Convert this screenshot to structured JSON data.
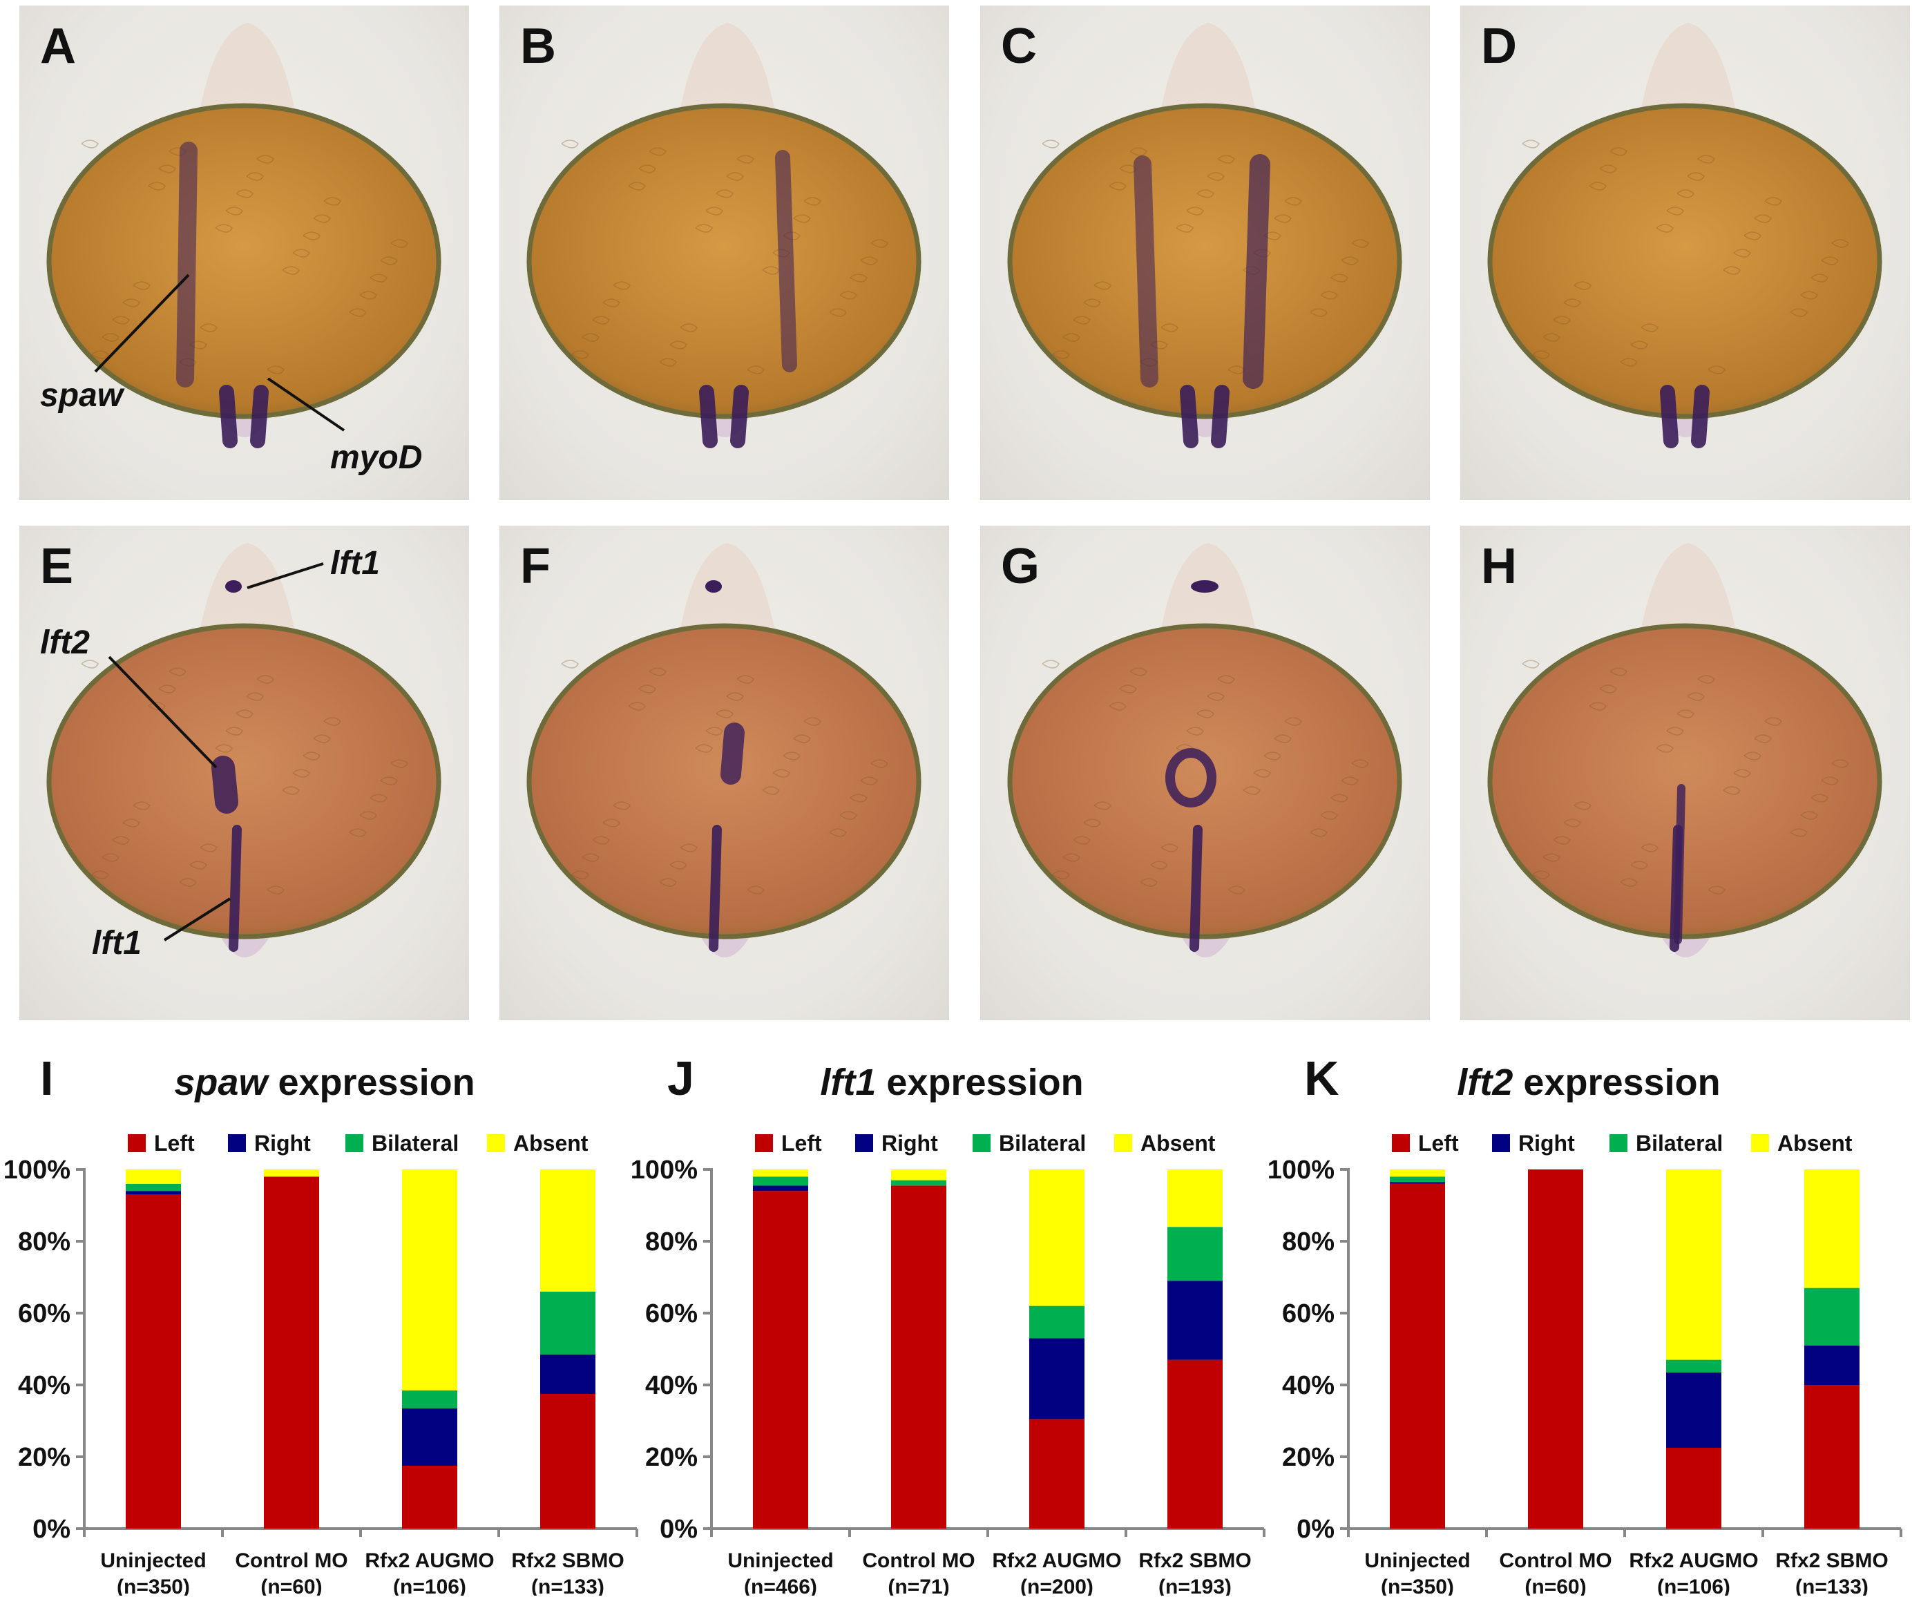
{
  "panels": [
    {
      "id": "A",
      "row": 0,
      "col": 0,
      "stain": "spaw-left"
    },
    {
      "id": "B",
      "row": 0,
      "col": 1,
      "stain": "spaw-right"
    },
    {
      "id": "C",
      "row": 0,
      "col": 2,
      "stain": "spaw-bilateral"
    },
    {
      "id": "D",
      "row": 0,
      "col": 3,
      "stain": "spaw-absent"
    },
    {
      "id": "E",
      "row": 1,
      "col": 0,
      "stain": "lft-left"
    },
    {
      "id": "F",
      "row": 1,
      "col": 1,
      "stain": "lft-right"
    },
    {
      "id": "G",
      "row": 1,
      "col": 2,
      "stain": "lft-bilateral"
    },
    {
      "id": "H",
      "row": 1,
      "col": 3,
      "stain": "lft-absent"
    }
  ],
  "annotations": {
    "spaw": "spaw",
    "myoD": "myoD",
    "lft1_top": "lft1",
    "lft2": "lft2",
    "lft1_bottom": "lft1"
  },
  "colors": {
    "left": "#c00000",
    "right": "#000080",
    "bilateral": "#00b050",
    "absent": "#ffff00",
    "yolk": "#c98a3c",
    "stain": "#3b1e5a"
  },
  "legend": [
    "Left",
    "Right",
    "Bilateral",
    "Absent"
  ],
  "chart_data": [
    {
      "letter": "I",
      "title_gene": "spaw",
      "title_rest": " expression",
      "type": "bar",
      "stacked": true,
      "categories": [
        "Uninjected",
        "Control MO",
        "Rfx2 AUGMO",
        "Rfx2 SBMO"
      ],
      "n_labels": [
        "(n=350)",
        "(n=60)",
        "(n=106)",
        "(n=133)"
      ],
      "series": [
        {
          "name": "Left",
          "values": [
            93,
            98,
            17.5,
            37.5
          ]
        },
        {
          "name": "Right",
          "values": [
            1,
            0,
            16,
            11
          ]
        },
        {
          "name": "Bilateral",
          "values": [
            2,
            0,
            5,
            17.5
          ]
        },
        {
          "name": "Absent",
          "values": [
            4,
            2,
            61.5,
            34
          ]
        }
      ],
      "yticks": [
        "0%",
        "20%",
        "40%",
        "60%",
        "80%",
        "100%"
      ],
      "ylim": [
        0,
        100
      ]
    },
    {
      "letter": "J",
      "title_gene": "lft1",
      "title_rest": " expression",
      "type": "bar",
      "stacked": true,
      "categories": [
        "Uninjected",
        "Control MO",
        "Rfx2 AUGMO",
        "Rfx2 SBMO"
      ],
      "n_labels": [
        "(n=466)",
        "(n=71)",
        "(n=200)",
        "(n=193)"
      ],
      "series": [
        {
          "name": "Left",
          "values": [
            94,
            95.5,
            30.5,
            47
          ]
        },
        {
          "name": "Right",
          "values": [
            1.5,
            0,
            22.5,
            22
          ]
        },
        {
          "name": "Bilateral",
          "values": [
            2.5,
            1.5,
            9,
            15
          ]
        },
        {
          "name": "Absent",
          "values": [
            2,
            3,
            38,
            16
          ]
        }
      ],
      "yticks": [
        "0%",
        "20%",
        "40%",
        "60%",
        "80%",
        "100%"
      ],
      "ylim": [
        0,
        100
      ]
    },
    {
      "letter": "K",
      "title_gene": "lft2",
      "title_rest": " expression",
      "type": "bar",
      "stacked": true,
      "categories": [
        "Uninjected",
        "Control MO",
        "Rfx2 AUGMO",
        "Rfx2 SBMO"
      ],
      "n_labels": [
        "(n=350)",
        "(n=60)",
        "(n=106)",
        "(n=133)"
      ],
      "series": [
        {
          "name": "Left",
          "values": [
            96,
            100,
            22.5,
            40
          ]
        },
        {
          "name": "Right",
          "values": [
            0.5,
            0,
            21,
            11
          ]
        },
        {
          "name": "Bilateral",
          "values": [
            1.5,
            0,
            3.5,
            16
          ]
        },
        {
          "name": "Absent",
          "values": [
            2,
            0,
            53,
            33
          ]
        }
      ],
      "yticks": [
        "0%",
        "20%",
        "40%",
        "60%",
        "80%",
        "100%"
      ],
      "ylim": [
        0,
        100
      ]
    }
  ]
}
